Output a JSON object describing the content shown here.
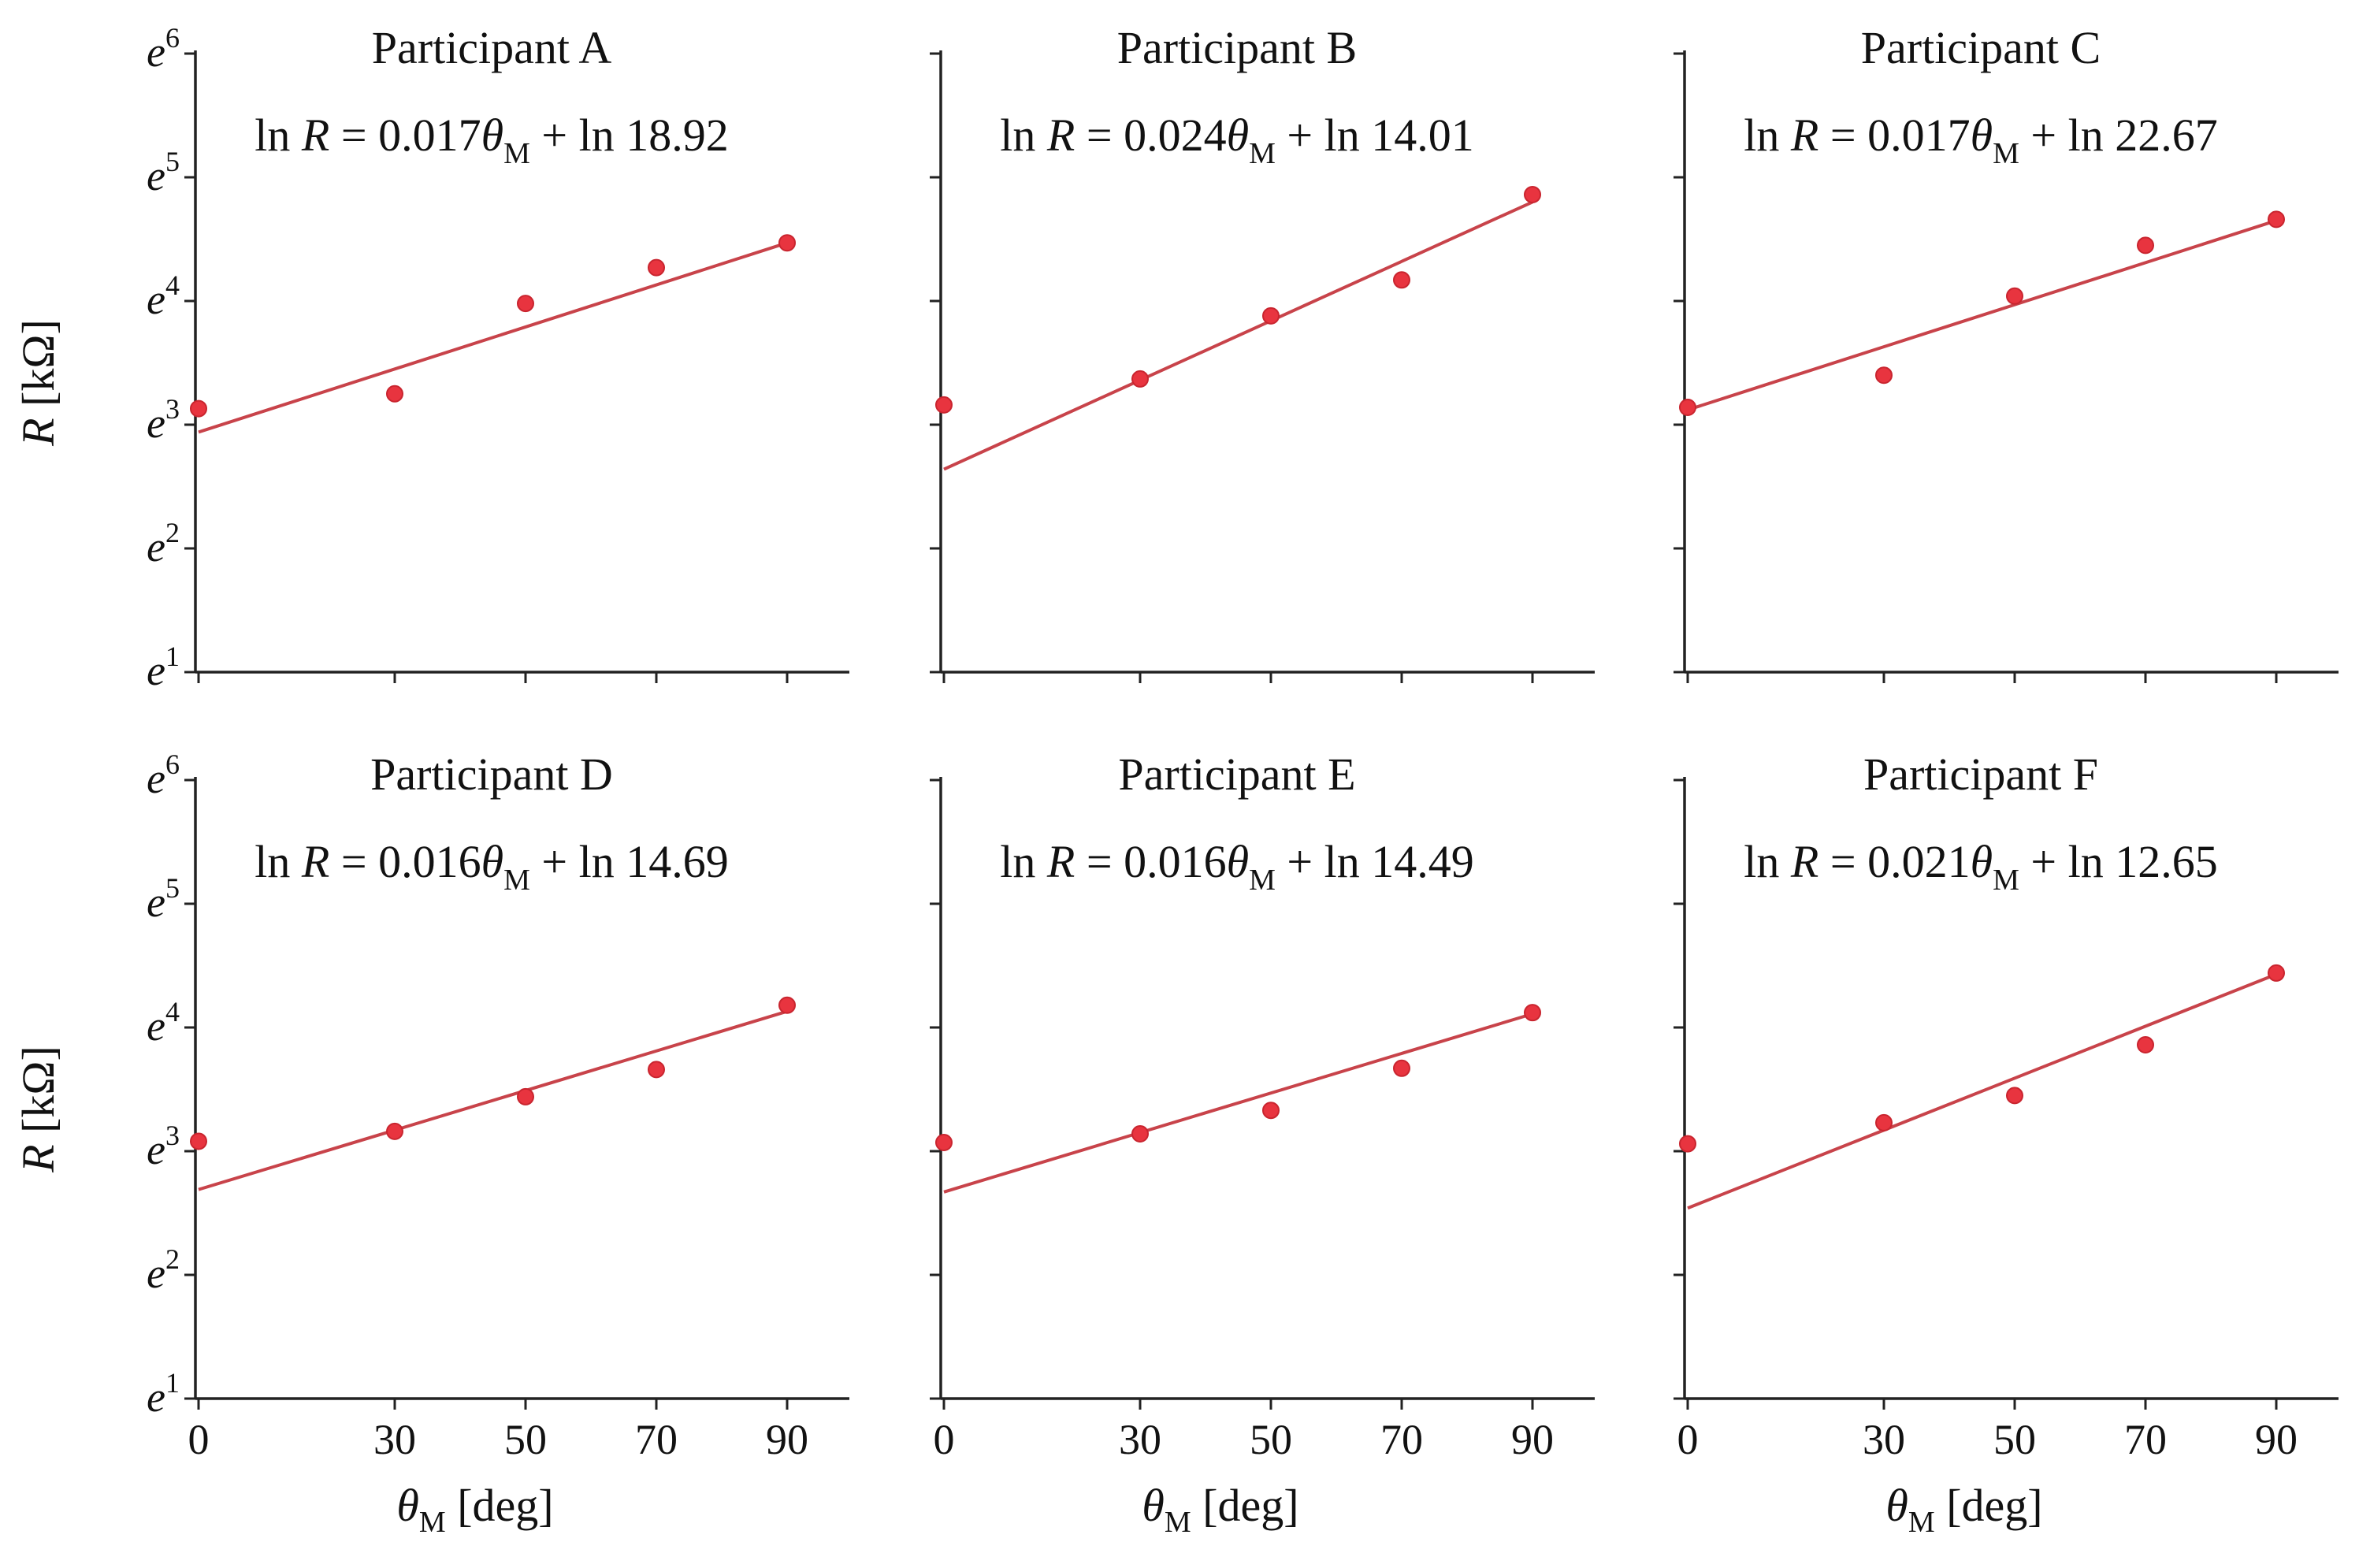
{
  "figure": {
    "y_axis_label_var": "R",
    "y_axis_label_unit": " [kΩ]",
    "x_axis_label_var": "θ",
    "x_axis_label_sub": "M",
    "x_axis_label_unit": " [deg]",
    "y_tick_base": "e",
    "y_tick_exponents": [
      "1",
      "2",
      "3",
      "4",
      "5",
      "6"
    ],
    "x_tick_labels": [
      "0",
      "30",
      "50",
      "70",
      "90"
    ]
  },
  "colors": {
    "marker": "#e8343f",
    "fit_line": "#c8434a",
    "axis": "#222222"
  },
  "chart_data": [
    {
      "type": "scatter",
      "title": "Participant A",
      "equation": {
        "prefix": "ln ",
        "var": "R",
        "mid": " = 0.017",
        "theta": "θ",
        "sub": "M",
        "suffix": " + ln 18.92"
      },
      "slope": 0.017,
      "intercept_ln": 2.94,
      "x": [
        0,
        30,
        50,
        70,
        90
      ],
      "y_lnR": [
        3.13,
        3.25,
        3.98,
        4.27,
        4.47
      ],
      "xlim": [
        -2,
        95
      ],
      "ylim": [
        1,
        6
      ],
      "xlabel": "θM [deg]",
      "ylabel": "R [kΩ]"
    },
    {
      "type": "scatter",
      "title": "Participant B",
      "equation": {
        "prefix": "ln ",
        "var": "R",
        "mid": " = 0.024",
        "theta": "θ",
        "sub": "M",
        "suffix": " + ln 14.01"
      },
      "slope": 0.024,
      "intercept_ln": 2.64,
      "x": [
        0,
        30,
        50,
        70,
        90
      ],
      "y_lnR": [
        3.16,
        3.37,
        3.88,
        4.17,
        4.86
      ],
      "xlim": [
        -2,
        95
      ],
      "ylim": [
        1,
        6
      ],
      "xlabel": "θM [deg]",
      "ylabel": "R [kΩ]"
    },
    {
      "type": "scatter",
      "title": "Participant C",
      "equation": {
        "prefix": "ln ",
        "var": "R",
        "mid": " = 0.017",
        "theta": "θ",
        "sub": "M",
        "suffix": " + ln 22.67"
      },
      "slope": 0.017,
      "intercept_ln": 3.12,
      "x": [
        0,
        30,
        50,
        70,
        90
      ],
      "y_lnR": [
        3.14,
        3.4,
        4.04,
        4.45,
        4.66
      ],
      "xlim": [
        -2,
        95
      ],
      "ylim": [
        1,
        6
      ],
      "xlabel": "θM [deg]",
      "ylabel": "R [kΩ]"
    },
    {
      "type": "scatter",
      "title": "Participant D",
      "equation": {
        "prefix": "ln ",
        "var": "R",
        "mid": " = 0.016",
        "theta": "θ",
        "sub": "M",
        "suffix": " + ln 14.69"
      },
      "slope": 0.016,
      "intercept_ln": 2.69,
      "x": [
        0,
        30,
        50,
        70,
        90
      ],
      "y_lnR": [
        3.08,
        3.16,
        3.44,
        3.66,
        4.18
      ],
      "xlim": [
        -2,
        95
      ],
      "ylim": [
        1,
        6
      ],
      "xlabel": "θM [deg]",
      "ylabel": "R [kΩ]"
    },
    {
      "type": "scatter",
      "title": "Participant E",
      "equation": {
        "prefix": "ln ",
        "var": "R",
        "mid": " = 0.016",
        "theta": "θ",
        "sub": "M",
        "suffix": " + ln 14.49"
      },
      "slope": 0.016,
      "intercept_ln": 2.67,
      "x": [
        0,
        30,
        50,
        70,
        90
      ],
      "y_lnR": [
        3.07,
        3.14,
        3.33,
        3.67,
        4.12
      ],
      "xlim": [
        -2,
        95
      ],
      "ylim": [
        1,
        6
      ],
      "xlabel": "θM [deg]",
      "ylabel": "R [kΩ]"
    },
    {
      "type": "scatter",
      "title": "Participant F",
      "equation": {
        "prefix": "ln ",
        "var": "R",
        "mid": " = 0.021",
        "theta": "θ",
        "sub": "M",
        "suffix": " + ln 12.65"
      },
      "slope": 0.021,
      "intercept_ln": 2.54,
      "x": [
        0,
        30,
        50,
        70,
        90
      ],
      "y_lnR": [
        3.06,
        3.23,
        3.45,
        3.86,
        4.44
      ],
      "xlim": [
        -2,
        95
      ],
      "ylim": [
        1,
        6
      ],
      "xlabel": "θM [deg]",
      "ylabel": "R [kΩ]"
    }
  ]
}
